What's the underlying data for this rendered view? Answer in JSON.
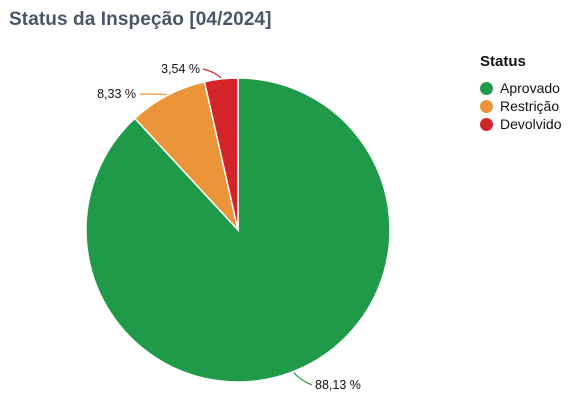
{
  "title": "Status da Inspeção [04/2024]",
  "legend": {
    "title": "Status"
  },
  "chart_data": {
    "type": "pie",
    "title": "Status da Inspeção [04/2024]",
    "categories": [
      "Aprovado",
      "Restrição",
      "Devolvido"
    ],
    "values": [
      88.13,
      8.33,
      3.54
    ],
    "labels": [
      "88,13 %",
      "8,33 %",
      "3,54 %"
    ],
    "colors": [
      "#1e9a48",
      "#ec9438",
      "#d4262a"
    ],
    "legend_title": "Status",
    "legend_position": "top-right"
  }
}
